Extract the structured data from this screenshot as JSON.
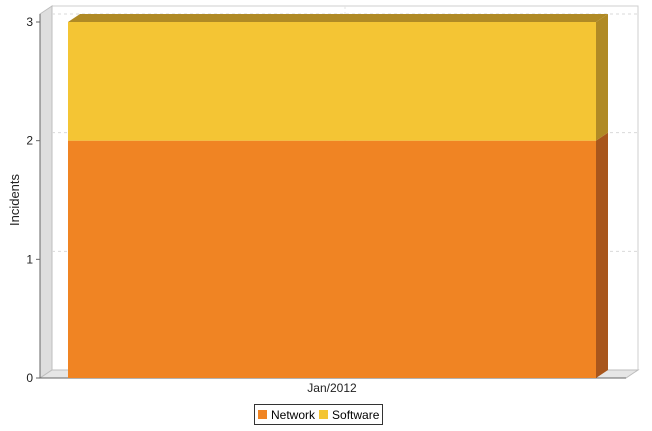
{
  "chart_data": {
    "type": "bar",
    "stacked": true,
    "three_d": true,
    "categories": [
      "Jan/2012"
    ],
    "series": [
      {
        "name": "Network",
        "values": [
          2
        ],
        "color": "#f08423",
        "side_color": "#a8561c"
      },
      {
        "name": "Software",
        "values": [
          1
        ],
        "color": "#f4c534",
        "side_color": "#b08a25"
      }
    ],
    "ylabel": "Incidents",
    "xlabel": "",
    "ylim": [
      0,
      3
    ],
    "yticks": [
      0,
      1,
      2,
      3
    ],
    "grid": true,
    "legend_position": "bottom-center"
  }
}
